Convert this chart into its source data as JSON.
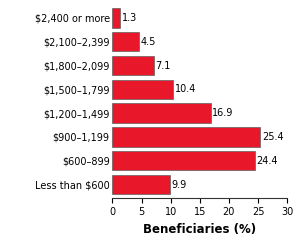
{
  "categories": [
    "$2,400 or more",
    "$2,100–2,399",
    "$1,800–2,099",
    "$1,500–1,799",
    "$1,200–1,499",
    "$900–1,199",
    "$600–899",
    "Less than $600"
  ],
  "values": [
    1.3,
    4.5,
    7.1,
    10.4,
    16.9,
    25.4,
    24.4,
    9.9
  ],
  "bar_color": "#E8182A",
  "edge_color": "#606060",
  "xlabel": "Beneficiaries (%)",
  "xlim": [
    0,
    30
  ],
  "xticks": [
    0,
    5,
    10,
    15,
    20,
    25,
    30
  ],
  "label_fontsize": 7.0,
  "value_fontsize": 7.0,
  "xlabel_fontsize": 8.5,
  "background_color": "#ffffff"
}
